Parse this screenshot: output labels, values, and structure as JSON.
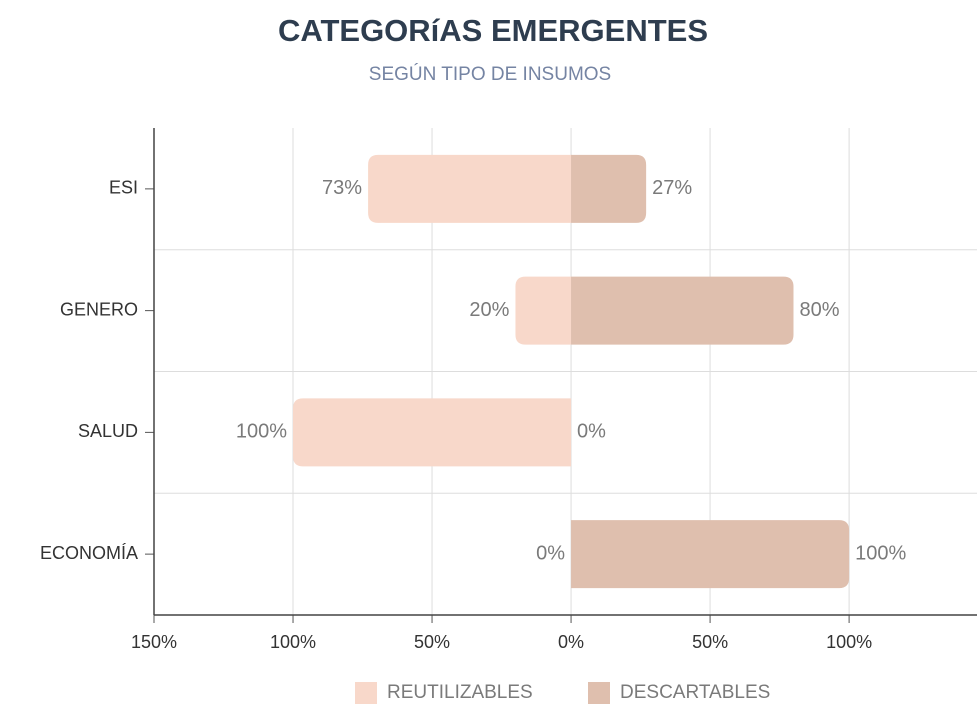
{
  "chart_data": {
    "type": "diverging-bar",
    "title": "CATEGORíAS EMERGENTES",
    "subtitle": "SEGÚN TIPO DE INSUMOS",
    "categories": [
      "ESI",
      "GENERO",
      "SALUD",
      "ECONOMÍA"
    ],
    "series": [
      {
        "name": "REUTILIZABLES",
        "color": "#f8d8ca",
        "values": [
          73,
          20,
          100,
          0
        ],
        "value_labels": [
          "73%",
          "20%",
          "100%",
          "0%"
        ]
      },
      {
        "name": "DESCARTABLES",
        "color": "#dfbfae",
        "values": [
          27,
          80,
          0,
          100
        ],
        "value_labels": [
          "27%",
          "80%",
          "0%",
          "100%"
        ]
      }
    ],
    "xlim": [
      -150,
      146
    ],
    "xticks": [
      {
        "value": -150,
        "label": "150%"
      },
      {
        "value": -100,
        "label": "100%"
      },
      {
        "value": -50,
        "label": "50%"
      },
      {
        "value": 0,
        "label": "0%"
      },
      {
        "value": 50,
        "label": "50%"
      },
      {
        "value": 100,
        "label": "100%"
      }
    ],
    "grid": true,
    "legend": "bottom"
  }
}
